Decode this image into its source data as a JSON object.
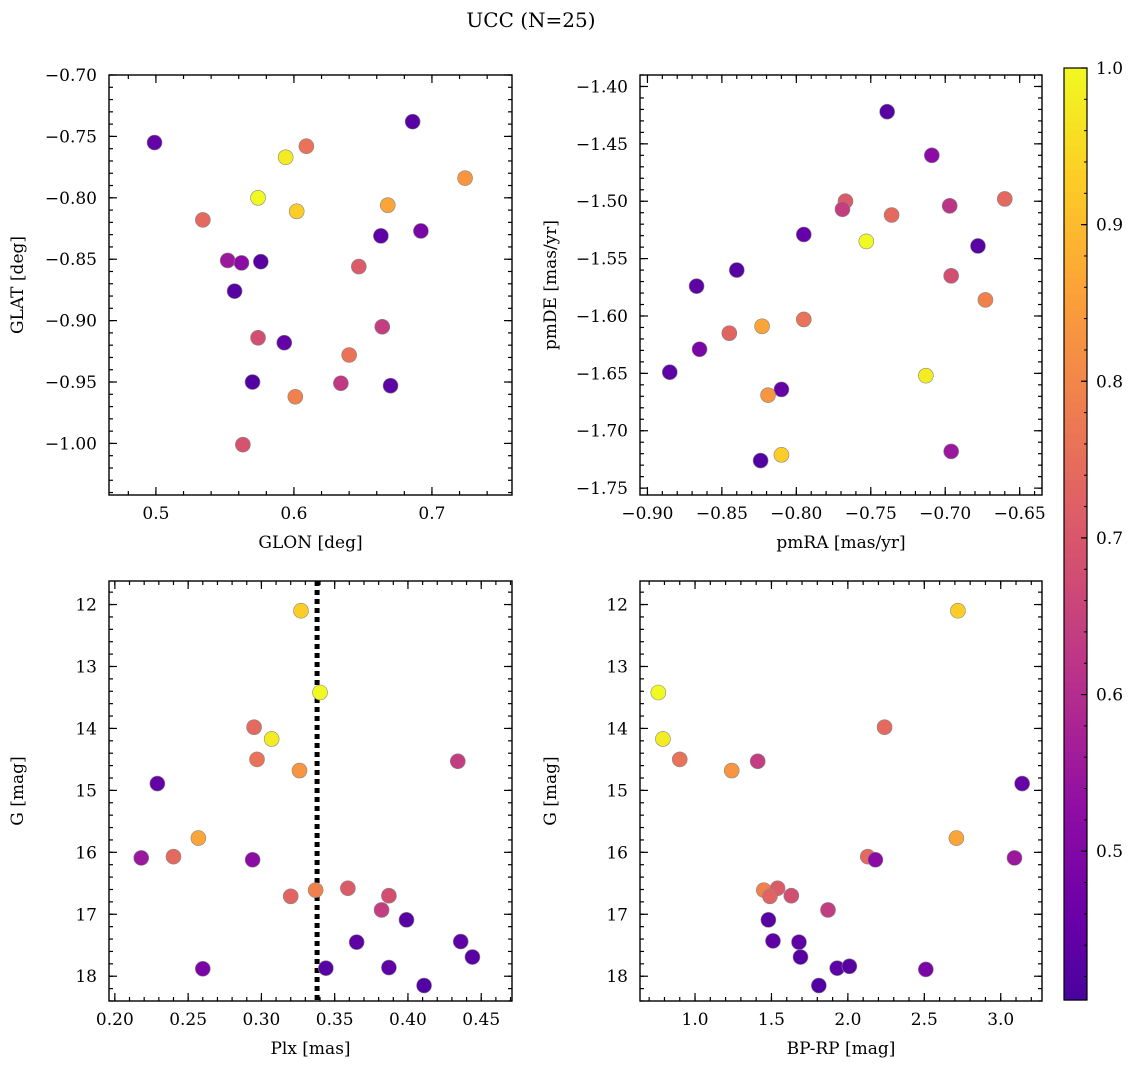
{
  "figure": {
    "title": "UCC (N=25)"
  },
  "colorbar": {
    "colormap": "plasma",
    "range": [
      0.405,
      1.0
    ],
    "ticks": [
      "0.5",
      "0.6",
      "0.7",
      "0.8",
      "0.9",
      "1.0"
    ]
  },
  "chart_data": [
    {
      "type": "scatter",
      "name": "glon-glat",
      "xlabel": "GLON [deg]",
      "ylabel": "GLAT [deg]",
      "xlim": [
        0.466,
        0.758
      ],
      "ylim": [
        -1.042,
        -0.7
      ],
      "xticks": [
        "0.5",
        "0.6",
        "0.7"
      ],
      "yticks": [
        "-0.70",
        "-0.75",
        "-0.80",
        "-0.85",
        "-0.90",
        "-0.95",
        "-1.00"
      ],
      "points": [
        {
          "x": 0.499,
          "y": -0.755,
          "c": 0.45
        },
        {
          "x": 0.534,
          "y": -0.818,
          "c": 0.74
        },
        {
          "x": 0.552,
          "y": -0.851,
          "c": 0.55
        },
        {
          "x": 0.557,
          "y": -0.876,
          "c": 0.43
        },
        {
          "x": 0.562,
          "y": -0.853,
          "c": 0.52
        },
        {
          "x": 0.563,
          "y": -1.001,
          "c": 0.69
        },
        {
          "x": 0.57,
          "y": -0.95,
          "c": 0.42
        },
        {
          "x": 0.574,
          "y": -0.914,
          "c": 0.68
        },
        {
          "x": 0.574,
          "y": -0.8,
          "c": 1.0
        },
        {
          "x": 0.576,
          "y": -0.852,
          "c": 0.43
        },
        {
          "x": 0.593,
          "y": -0.918,
          "c": 0.45
        },
        {
          "x": 0.594,
          "y": -0.767,
          "c": 0.98
        },
        {
          "x": 0.601,
          "y": -0.962,
          "c": 0.79
        },
        {
          "x": 0.602,
          "y": -0.811,
          "c": 0.93
        },
        {
          "x": 0.609,
          "y": -0.758,
          "c": 0.76
        },
        {
          "x": 0.634,
          "y": -0.951,
          "c": 0.63
        },
        {
          "x": 0.64,
          "y": -0.928,
          "c": 0.76
        },
        {
          "x": 0.647,
          "y": -0.856,
          "c": 0.71
        },
        {
          "x": 0.663,
          "y": -0.831,
          "c": 0.44
        },
        {
          "x": 0.664,
          "y": -0.905,
          "c": 0.64
        },
        {
          "x": 0.668,
          "y": -0.806,
          "c": 0.86
        },
        {
          "x": 0.67,
          "y": -0.953,
          "c": 0.44
        },
        {
          "x": 0.686,
          "y": -0.738,
          "c": 0.43
        },
        {
          "x": 0.692,
          "y": -0.827,
          "c": 0.49
        },
        {
          "x": 0.724,
          "y": -0.784,
          "c": 0.83
        }
      ]
    },
    {
      "type": "scatter",
      "name": "pmra-pmde",
      "xlabel": "pmRA [mas/yr]",
      "ylabel": "pmDE [mas/yr]",
      "xlim": [
        -0.905,
        -0.635
      ],
      "ylim": [
        -1.756,
        -1.39
      ],
      "xticks": [
        "-0.90",
        "-0.85",
        "-0.80",
        "-0.75",
        "-0.70",
        "-0.65"
      ],
      "yticks": [
        "-1.40",
        "-1.45",
        "-1.50",
        "-1.55",
        "-1.60",
        "-1.65",
        "-1.70",
        "-1.75"
      ],
      "points": [
        {
          "x": -0.739,
          "y": -1.422,
          "c": 0.43
        },
        {
          "x": -0.709,
          "y": -1.46,
          "c": 0.52
        },
        {
          "x": -0.66,
          "y": -1.498,
          "c": 0.74
        },
        {
          "x": -0.767,
          "y": -1.5,
          "c": 0.71
        },
        {
          "x": -0.697,
          "y": -1.504,
          "c": 0.62
        },
        {
          "x": -0.769,
          "y": -1.507,
          "c": 0.64
        },
        {
          "x": -0.736,
          "y": -1.512,
          "c": 0.74
        },
        {
          "x": -0.795,
          "y": -1.529,
          "c": 0.45
        },
        {
          "x": -0.753,
          "y": -1.535,
          "c": 1.0
        },
        {
          "x": -0.678,
          "y": -1.539,
          "c": 0.43
        },
        {
          "x": -0.84,
          "y": -1.56,
          "c": 0.43
        },
        {
          "x": -0.696,
          "y": -1.565,
          "c": 0.68
        },
        {
          "x": -0.867,
          "y": -1.574,
          "c": 0.44
        },
        {
          "x": -0.673,
          "y": -1.586,
          "c": 0.79
        },
        {
          "x": -0.795,
          "y": -1.603,
          "c": 0.76
        },
        {
          "x": -0.823,
          "y": -1.609,
          "c": 0.86
        },
        {
          "x": -0.845,
          "y": -1.615,
          "c": 0.73
        },
        {
          "x": -0.865,
          "y": -1.629,
          "c": 0.49
        },
        {
          "x": -0.885,
          "y": -1.649,
          "c": 0.44
        },
        {
          "x": -0.713,
          "y": -1.652,
          "c": 0.98
        },
        {
          "x": -0.81,
          "y": -1.664,
          "c": 0.45
        },
        {
          "x": -0.819,
          "y": -1.669,
          "c": 0.83
        },
        {
          "x": -0.81,
          "y": -1.721,
          "c": 0.93
        },
        {
          "x": -0.696,
          "y": -1.718,
          "c": 0.55
        },
        {
          "x": -0.824,
          "y": -1.726,
          "c": 0.42
        }
      ]
    },
    {
      "type": "scatter",
      "name": "plx-g",
      "xlabel": "Plx [mas]",
      "ylabel": "G [mag]",
      "xlim": [
        0.196,
        0.471
      ],
      "ylim": [
        18.4,
        11.62
      ],
      "xticks": [
        "0.20",
        "0.25",
        "0.30",
        "0.35",
        "0.40",
        "0.45"
      ],
      "yticks": [
        "12",
        "13",
        "14",
        "15",
        "16",
        "17",
        "18"
      ],
      "vline": 0.338,
      "points": [
        {
          "x": 0.327,
          "y": 12.1,
          "c": 0.93
        },
        {
          "x": 0.34,
          "y": 13.42,
          "c": 1.0
        },
        {
          "x": 0.295,
          "y": 13.98,
          "c": 0.74
        },
        {
          "x": 0.307,
          "y": 14.17,
          "c": 0.98
        },
        {
          "x": 0.297,
          "y": 14.5,
          "c": 0.76
        },
        {
          "x": 0.326,
          "y": 14.68,
          "c": 0.83
        },
        {
          "x": 0.434,
          "y": 14.53,
          "c": 0.64
        },
        {
          "x": 0.229,
          "y": 14.89,
          "c": 0.45
        },
        {
          "x": 0.257,
          "y": 15.77,
          "c": 0.86
        },
        {
          "x": 0.218,
          "y": 16.09,
          "c": 0.55
        },
        {
          "x": 0.24,
          "y": 16.07,
          "c": 0.74
        },
        {
          "x": 0.294,
          "y": 16.12,
          "c": 0.52
        },
        {
          "x": 0.337,
          "y": 16.61,
          "c": 0.79
        },
        {
          "x": 0.32,
          "y": 16.71,
          "c": 0.73
        },
        {
          "x": 0.359,
          "y": 16.58,
          "c": 0.71
        },
        {
          "x": 0.387,
          "y": 16.7,
          "c": 0.68
        },
        {
          "x": 0.382,
          "y": 16.93,
          "c": 0.64
        },
        {
          "x": 0.399,
          "y": 17.09,
          "c": 0.43
        },
        {
          "x": 0.365,
          "y": 17.45,
          "c": 0.44
        },
        {
          "x": 0.436,
          "y": 17.44,
          "c": 0.44
        },
        {
          "x": 0.444,
          "y": 17.69,
          "c": 0.43
        },
        {
          "x": 0.26,
          "y": 17.88,
          "c": 0.49
        },
        {
          "x": 0.344,
          "y": 17.87,
          "c": 0.43
        },
        {
          "x": 0.387,
          "y": 17.86,
          "c": 0.44
        },
        {
          "x": 0.411,
          "y": 18.15,
          "c": 0.42
        }
      ]
    },
    {
      "type": "scatter",
      "name": "bprp-g",
      "xlabel": "BP-RP [mag]",
      "ylabel": "G [mag]",
      "xlim": [
        0.64,
        3.27
      ],
      "ylim": [
        18.4,
        11.62
      ],
      "xticks": [
        "1.0",
        "1.5",
        "2.0",
        "2.5",
        "3.0"
      ],
      "yticks": [
        "12",
        "13",
        "14",
        "15",
        "16",
        "17",
        "18"
      ],
      "points": [
        {
          "x": 2.72,
          "y": 12.1,
          "c": 0.93
        },
        {
          "x": 0.76,
          "y": 13.42,
          "c": 1.0
        },
        {
          "x": 0.79,
          "y": 14.17,
          "c": 0.98
        },
        {
          "x": 2.24,
          "y": 13.98,
          "c": 0.74
        },
        {
          "x": 0.9,
          "y": 14.5,
          "c": 0.76
        },
        {
          "x": 1.24,
          "y": 14.68,
          "c": 0.83
        },
        {
          "x": 1.41,
          "y": 14.53,
          "c": 0.64
        },
        {
          "x": 3.14,
          "y": 14.89,
          "c": 0.45
        },
        {
          "x": 2.71,
          "y": 15.77,
          "c": 0.86
        },
        {
          "x": 2.13,
          "y": 16.07,
          "c": 0.74
        },
        {
          "x": 3.09,
          "y": 16.09,
          "c": 0.55
        },
        {
          "x": 1.45,
          "y": 16.61,
          "c": 0.79
        },
        {
          "x": 1.54,
          "y": 16.58,
          "c": 0.71
        },
        {
          "x": 1.49,
          "y": 16.71,
          "c": 0.73
        },
        {
          "x": 1.63,
          "y": 16.7,
          "c": 0.68
        },
        {
          "x": 1.87,
          "y": 16.93,
          "c": 0.64
        },
        {
          "x": 1.48,
          "y": 17.09,
          "c": 0.43
        },
        {
          "x": 1.51,
          "y": 17.43,
          "c": 0.44
        },
        {
          "x": 1.68,
          "y": 17.45,
          "c": 0.44
        },
        {
          "x": 1.69,
          "y": 17.69,
          "c": 0.43
        },
        {
          "x": 1.93,
          "y": 17.87,
          "c": 0.44
        },
        {
          "x": 2.01,
          "y": 17.84,
          "c": 0.43
        },
        {
          "x": 2.51,
          "y": 17.89,
          "c": 0.49
        },
        {
          "x": 1.81,
          "y": 18.15,
          "c": 0.42
        },
        {
          "x": 2.18,
          "y": 16.12,
          "c": 0.52
        }
      ]
    }
  ]
}
